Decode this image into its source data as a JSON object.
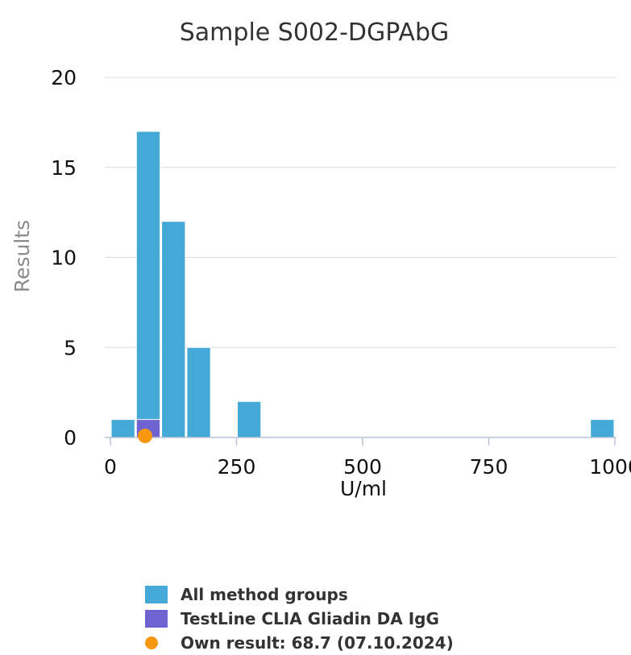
{
  "chart_data": {
    "type": "bar",
    "title": "Sample S002-DGPAbG",
    "xlabel": "U/ml",
    "ylabel": "Results",
    "xlim": [
      0,
      1000
    ],
    "ylim": [
      0,
      20
    ],
    "x_ticks": [
      "0",
      "250",
      "500",
      "750",
      "1000"
    ],
    "y_ticks": [
      "0",
      "5",
      "10",
      "15",
      "20"
    ],
    "grid": true,
    "legend_position": "bottom",
    "series": [
      {
        "name": "All method groups",
        "color": "#45a9d8",
        "bins": [
          {
            "x0": 0,
            "x1": 50,
            "value": 1
          },
          {
            "x0": 50,
            "x1": 100,
            "value": 17
          },
          {
            "x0": 100,
            "x1": 150,
            "value": 12
          },
          {
            "x0": 150,
            "x1": 200,
            "value": 5
          },
          {
            "x0": 250,
            "x1": 300,
            "value": 2
          },
          {
            "x0": 950,
            "x1": 1000,
            "value": 1
          }
        ]
      },
      {
        "name": "TestLine CLIA Gliadin DA IgG",
        "color": "#6f63d1",
        "bins": [
          {
            "x0": 50,
            "x1": 100,
            "value": 1
          }
        ]
      }
    ],
    "own_result": {
      "label": "Own result: 68.7 (07.10.2024)",
      "value": 68.7,
      "color": "#f5980f"
    }
  }
}
